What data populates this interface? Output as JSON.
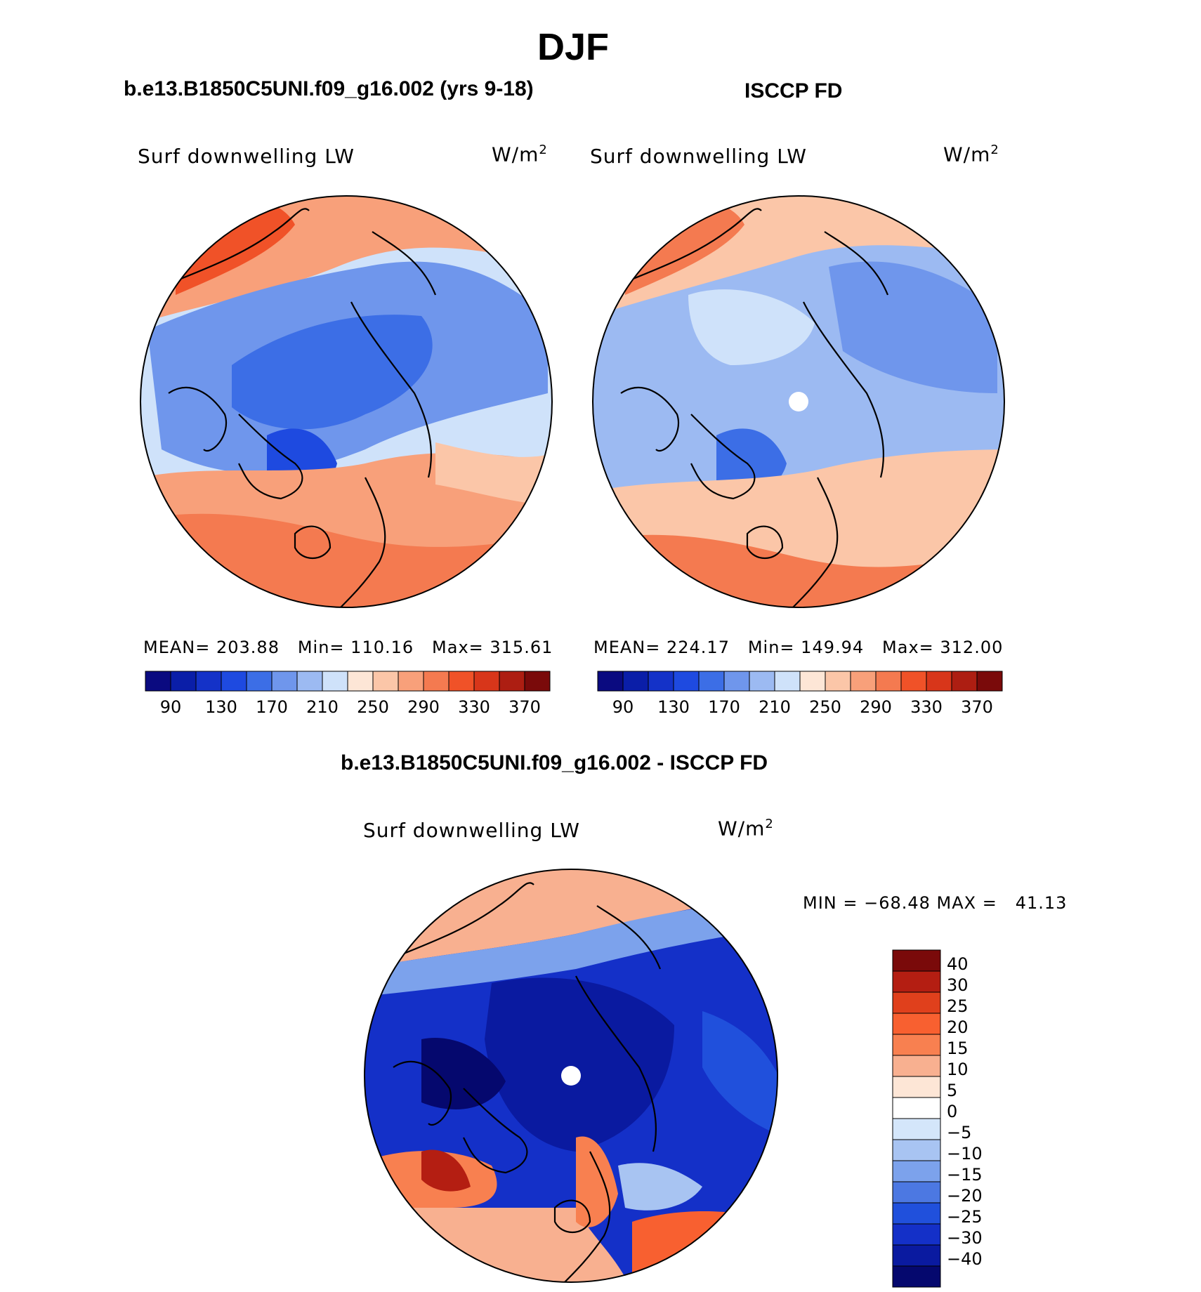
{
  "figure": {
    "season": "DJF",
    "model_title": "b.e13.B1850C5UNI.f09_g16.002 (yrs 9-18)",
    "obs_title": "ISCCP FD",
    "diff_title": "b.e13.B1850C5UNI.f09_g16.002 - ISCCP FD"
  },
  "panels": {
    "model": {
      "variable": "Surf downwelling LW",
      "units": "W/m",
      "units_exponent": "2",
      "stats_text": "MEAN= 203.88   Min= 110.16   Max= 315.61",
      "mean": 203.88,
      "min": 110.16,
      "max": 315.61
    },
    "obs": {
      "variable": "Surf downwelling LW",
      "units": "W/m",
      "units_exponent": "2",
      "stats_text": "MEAN= 224.17   Min= 149.94   Max= 312.00",
      "mean": 224.17,
      "min": 149.94,
      "max": 312.0
    },
    "diff": {
      "variable": "Surf downwelling LW",
      "units": "W/m",
      "units_exponent": "2",
      "stats_text": "MIN = −68.48 MAX =   41.13",
      "min": -68.48,
      "max": 41.13
    }
  },
  "colorbar_main": {
    "labels": [
      "90",
      "130",
      "170",
      "210",
      "250",
      "290",
      "330",
      "370"
    ],
    "colors": [
      "#0a0a80",
      "#0a1ea8",
      "#1432c8",
      "#1e4ae0",
      "#3c6ee6",
      "#6f96ec",
      "#9cbaf2",
      "#cfe2fa",
      "#fde6d6",
      "#fbc6a8",
      "#f8a07a",
      "#f47a50",
      "#f05228",
      "#d8361a",
      "#ad1e12",
      "#7a0a0a"
    ]
  },
  "colorbar_diff": {
    "labels": [
      "40",
      "30",
      "25",
      "20",
      "15",
      "10",
      "5",
      "0",
      "−5",
      "−10",
      "−15",
      "−20",
      "−25",
      "−30",
      "−40"
    ],
    "colors": [
      "#7a0a0a",
      "#b41e12",
      "#e0401c",
      "#f86030",
      "#f88050",
      "#f8b090",
      "#fde6d6",
      "#ffffff",
      "#d4e6fa",
      "#a8c4f2",
      "#7ca2ec",
      "#4c78e2",
      "#2050dc",
      "#1430c8",
      "#0a1aa0",
      "#05086e"
    ]
  },
  "map_colors": {
    "land_outline": "#000000",
    "warm": "#f47a50",
    "cool": "#3c6ee6",
    "deep": "#0a1aa0"
  }
}
